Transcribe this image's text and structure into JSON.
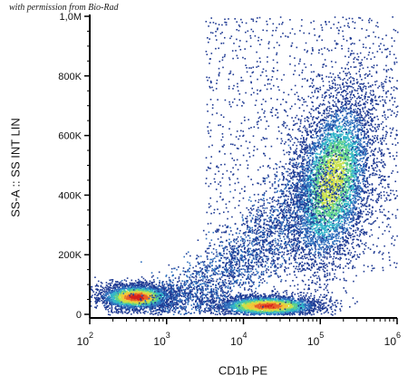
{
  "header": {
    "credit": "with permission from Bio-Rad"
  },
  "chart_data": {
    "type": "scatter",
    "title": "",
    "xlabel": "CD1b PE",
    "ylabel": "SS-A :: SS INT LIN",
    "x_scale": "log",
    "xlim": [
      100,
      1000000
    ],
    "ylim": [
      0,
      1000000
    ],
    "x_ticks": [
      {
        "value": 100,
        "base": "10",
        "exp": "2"
      },
      {
        "value": 1000,
        "base": "10",
        "exp": "3"
      },
      {
        "value": 10000,
        "base": "10",
        "exp": "4"
      },
      {
        "value": 100000,
        "base": "10",
        "exp": "5"
      },
      {
        "value": 1000000,
        "base": "10",
        "exp": "6"
      }
    ],
    "y_ticks": [
      {
        "value": 0,
        "label": "0"
      },
      {
        "value": 200000,
        "label": "200K"
      },
      {
        "value": 400000,
        "label": "400K"
      },
      {
        "value": 600000,
        "label": "600K"
      },
      {
        "value": 800000,
        "label": "800K"
      },
      {
        "value": 1000000,
        "label": "1,0M"
      }
    ],
    "grid": false,
    "legend": "none",
    "colormap": [
      "#1f3a93",
      "#2f6fbd",
      "#33b5c9",
      "#5ccf8a",
      "#c8e04a",
      "#f0c93a",
      "#e8622a",
      "#d4201c"
    ],
    "populations": [
      {
        "x": 400,
        "y": 60000,
        "x_spread_decades": 0.25,
        "y_spread": 22000,
        "peak_density": 1.0
      },
      {
        "x": 20000,
        "y": 30000,
        "x_spread_decades": 0.35,
        "y_spread": 18000,
        "peak_density": 0.95
      },
      {
        "x": 140000,
        "y": 450000,
        "x_spread_decades": 0.3,
        "y_spread": 150000,
        "peak_density": 0.65
      }
    ]
  }
}
